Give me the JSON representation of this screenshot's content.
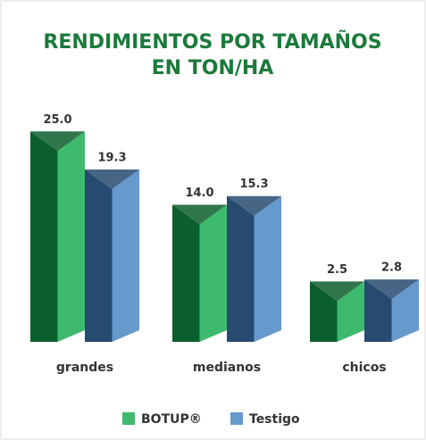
{
  "chart_data": {
    "type": "bar3d",
    "title": [
      "RENDIMIENTOS POR TAMAÑOS",
      "EN TON/HA"
    ],
    "categories": [
      "grandes",
      "medianos",
      "chicos"
    ],
    "series": [
      {
        "name": "BOTUP®",
        "color": "#3dba6e",
        "dark_color": "#0b5e2d",
        "values": [
          25,
          14,
          2.5
        ],
        "value_labels": [
          "25.0",
          "14.0",
          "2.5"
        ]
      },
      {
        "name": "Testigo",
        "color": "#6699cc",
        "dark_color": "#274b70",
        "values": [
          19.3,
          15.3,
          2.8
        ],
        "value_labels": [
          "19.3",
          "15.3",
          "2.8"
        ]
      }
    ]
  }
}
